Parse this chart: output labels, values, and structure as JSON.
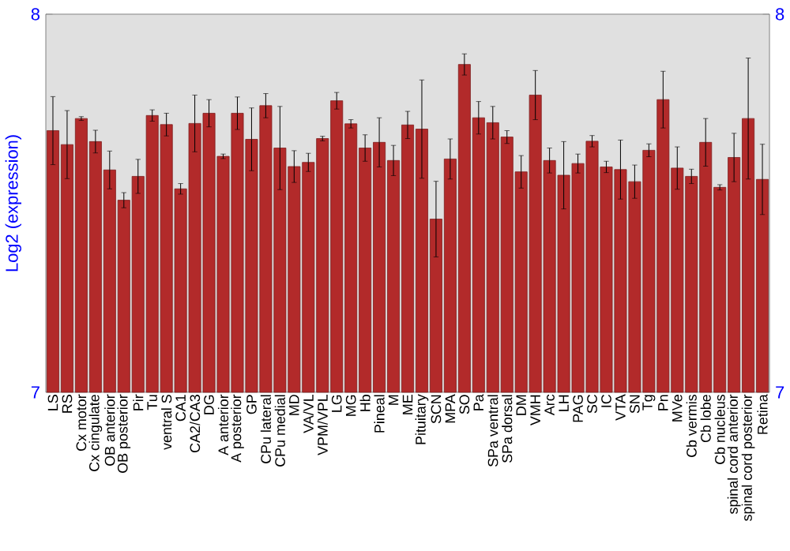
{
  "chart_data": {
    "type": "bar",
    "ylabel": "Log2 (expression)",
    "color": "#b22a2a",
    "categories": [
      "LS",
      "RS",
      "Cx motor",
      "Cx cingulate",
      "OB anterior",
      "OB posterior",
      "Pir",
      "Tu",
      "ventral S",
      "CA1",
      "CA2/CA3",
      "DG",
      "A anterior",
      "A posterior",
      "GP",
      "CPu lateral",
      "CPu medial",
      "MD",
      "VA/VL",
      "VPM/VPL",
      "LG",
      "MG",
      "Hb",
      "Pineal",
      "M",
      "ME",
      "Pituitary",
      "SCN",
      "MPA",
      "SO",
      "Pa",
      "SPa ventral",
      "SPa dorsal",
      "DM",
      "VMH",
      "Arc",
      "LH",
      "PAG",
      "SC",
      "IC",
      "VTA",
      "SN",
      "Tg",
      "Pn",
      "MVe",
      "Cb vermis",
      "Cb lobe",
      "Cb nucleus",
      "spinal cord anterior",
      "spinal cord posterior",
      "Retina"
    ],
    "values": [
      7.692,
      7.655,
      7.724,
      7.663,
      7.588,
      7.508,
      7.571,
      7.732,
      7.708,
      7.538,
      7.711,
      7.738,
      7.624,
      7.738,
      7.669,
      7.758,
      7.646,
      7.597,
      7.608,
      7.671,
      7.771,
      7.71,
      7.646,
      7.661,
      7.613,
      7.707,
      7.696,
      7.458,
      7.617,
      7.867,
      7.726,
      7.713,
      7.675,
      7.583,
      7.786,
      7.613,
      7.574,
      7.605,
      7.664,
      7.596,
      7.589,
      7.557,
      7.64,
      7.774,
      7.593,
      7.571,
      7.661,
      7.542,
      7.621,
      7.724,
      7.563
    ],
    "errors": [
      0.09,
      0.09,
      0.005,
      0.03,
      0.05,
      0.02,
      0.045,
      0.015,
      0.03,
      0.014,
      0.075,
      0.036,
      0.006,
      0.043,
      0.083,
      0.032,
      0.11,
      0.042,
      0.024,
      0.006,
      0.022,
      0.011,
      0.035,
      0.065,
      0.04,
      0.036,
      0.13,
      0.1,
      0.053,
      0.028,
      0.043,
      0.043,
      0.017,
      0.043,
      0.065,
      0.033,
      0.089,
      0.025,
      0.015,
      0.015,
      0.078,
      0.044,
      0.017,
      0.075,
      0.056,
      0.019,
      0.063,
      0.007,
      0.064,
      0.16,
      0.093
    ],
    "ylim": [
      7,
      8
    ],
    "yticks": [
      7,
      8
    ],
    "y2lim": [
      7,
      8
    ],
    "y2ticks": [
      7,
      8
    ]
  }
}
